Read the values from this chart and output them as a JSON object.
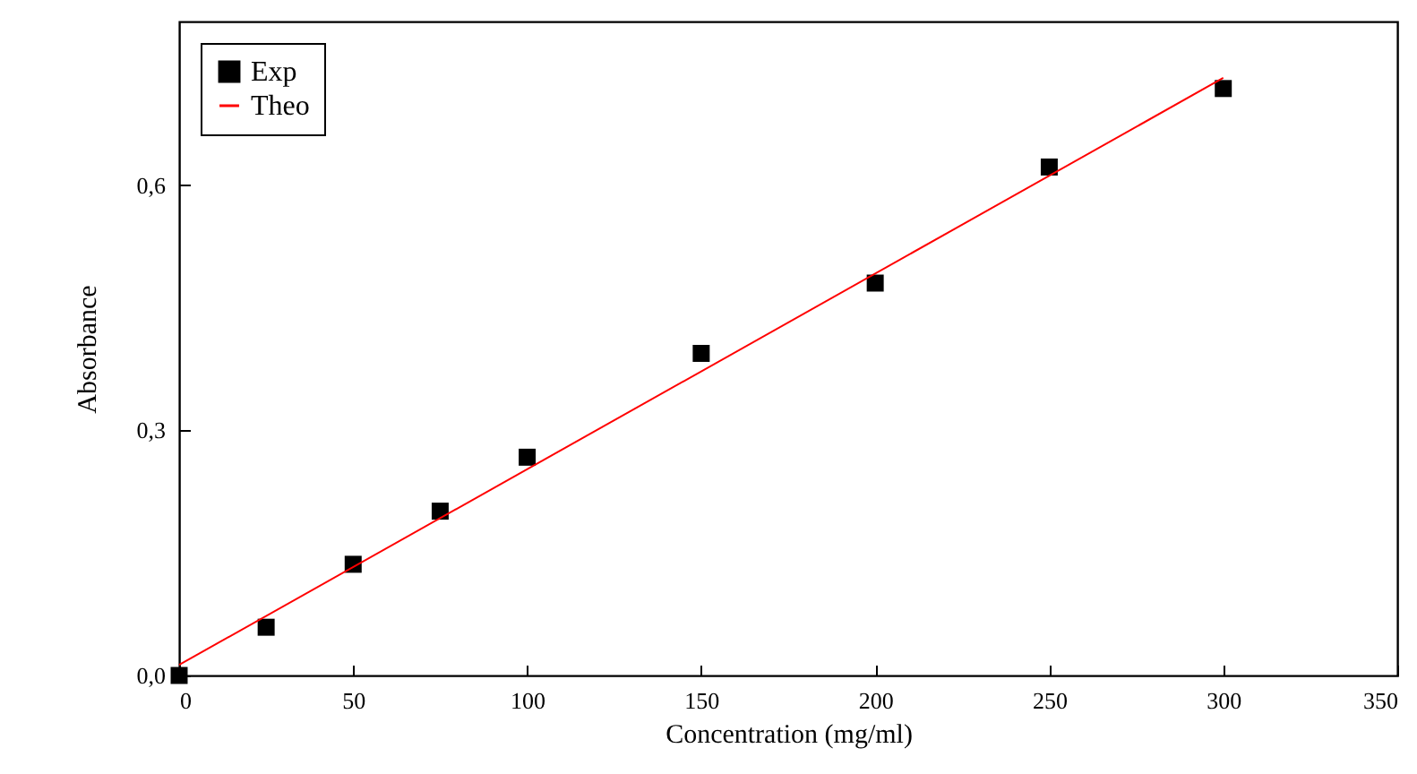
{
  "chart_data": {
    "type": "scatter",
    "xlabel": "Concentration (mg/ml)",
    "ylabel": "Absorbance",
    "xlim": [
      0,
      350
    ],
    "xticks": [
      0,
      50,
      100,
      150,
      200,
      250,
      300,
      350
    ],
    "ylim": [
      0,
      0.8
    ],
    "yticks": [
      {
        "value": 0,
        "label": "0,0"
      },
      {
        "value": 0.3,
        "label": "0,3"
      },
      {
        "value": 0.6,
        "label": "0,6"
      }
    ],
    "x": [
      0,
      25,
      50,
      75,
      100,
      150,
      200,
      250,
      300
    ],
    "legend": "top left",
    "grid": false,
    "series": [
      {
        "name": "Exp",
        "type": "scatter",
        "marker": "square",
        "color": "#000000",
        "values": [
          0.0,
          0.059,
          0.136,
          0.201,
          0.267,
          0.394,
          0.48,
          0.622,
          0.718
        ]
      },
      {
        "name": "Theo",
        "type": "line",
        "marker": "none",
        "line_style": "solid",
        "color": "#ff0000",
        "x": [
          0,
          300
        ],
        "values": [
          0.013,
          0.731
        ]
      }
    ]
  }
}
